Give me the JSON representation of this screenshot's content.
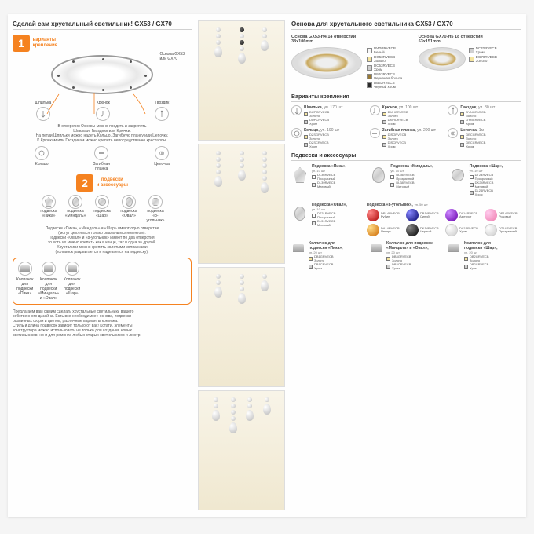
{
  "left": {
    "title": "Сделай сам хрустальный светильник! GX53 / GX70",
    "step1_num": "1",
    "step1_label": "варианты\nкрепления",
    "base_label": "Основа GX53\nили GX70",
    "callouts_top": [
      {
        "name": "Шпилька"
      },
      {
        "name": "Крючок"
      },
      {
        "name": "Гвоздик"
      }
    ],
    "desc1": "В отверстия Основы можно продеть и закрепить\nШпильки, Гвоздики или Крючки.\nНа петли Шпильки можно надеть Кольцо, Загибную планку или Цепочку.\nК Крючкам или Гвоздикам можно крепить непосредственно кристаллы.",
    "callouts_mid": [
      {
        "name": "Кольцо"
      },
      {
        "name": "Загибная\nпланка"
      },
      {
        "name": "Цепочка"
      }
    ],
    "step2_num": "2",
    "step2_label": "подвески\nи аксессуары",
    "pendants": [
      {
        "name": "подвеска\n«Пика»"
      },
      {
        "name": "подвеска\n«Миндаль»"
      },
      {
        "name": "подвеска\n«Шар»"
      },
      {
        "name": "подвеска\n«Овал»"
      },
      {
        "name": "подвеска\n«8-угольник»"
      }
    ],
    "desc2": "Подвески «Пика», «Миндаль» и «Шар» имеют одно отверстие\n(могут цепляться только овальным элементом).\nПодвески «Овал» и «8-угольник» имеют по два отверстия,\nто есть их можно крепить как в конце, так и одна за другой.\nХрусталики можно крепить золотыми колпачками\n(колпачок раздвигается и надевается на подвеску).",
    "caps": [
      {
        "name": "Колпачок\nдля\nподвески\n«Пика»"
      },
      {
        "name": "Колпачок\nдля\nподвески\n«Миндаль»\nи «Овал»"
      },
      {
        "name": "Колпачок\nдля\nподвески\n«Шар»"
      }
    ],
    "footer": "Предлагаем вам самим сделать хрустальные светильники вашего собственного дизайна. Есть все необходимое : основа, подвески различных форм и цветов, различные варианты крепежа.\nСтиль и длина подвесок зависит только от вас! Кстати, элементы конструктора можно использовать не только для создания новых светильников, но и для ремонта любых старых светильников и люстр.",
    "badges": [
      {
        "label": "Основа\nGX53 H4"
      },
      {
        "label": "Основа\nGX70-H5"
      }
    ]
  },
  "right": {
    "title": "Основа для хрустального светильника GX53 / GX70",
    "base1": {
      "title": "Основа GX53-H4 14 отверстий\n38x106mm",
      "codes": [
        {
          "c": "#f8f8f8",
          "t": "DW53RVECB\nБелый"
        },
        {
          "c": "#f5e5a0",
          "t": "DG53RVECB\nЗолото"
        },
        {
          "c": "#d0d0d0",
          "t": "DC53RVECB\nХром"
        },
        {
          "c": "#9a7a35",
          "t": "DN53RVECB\nЧерненая бронза"
        },
        {
          "c": "#2a2a2a",
          "t": "DB53RVECB\nЧерный хром"
        }
      ]
    },
    "base2": {
      "title": "Основа GX70-H5 18 отверстий\n53x151mm",
      "codes": [
        {
          "c": "#d0d0d0",
          "t": "DC70RVECB\nХром"
        },
        {
          "c": "#f5e5a0",
          "t": "DG70RVECB\nЗолото"
        }
      ]
    },
    "attach_title": "Варианты крепления",
    "attach": [
      {
        "name": "Шпилька,",
        "sub": "уп. 170 шт",
        "codes": [
          {
            "c": "#f5e5a0",
            "t": "DUPGRVECB\nЗолото"
          },
          {
            "c": "#d0d0d0",
            "t": "DUPCRVECB\nХром"
          }
        ]
      },
      {
        "name": "Крючок,",
        "sub": "уп. 100 шт",
        "codes": [
          {
            "c": "#f5e5a0",
            "t": "DMHGRVECB\nЗолото"
          },
          {
            "c": "#d0d0d0",
            "t": "DMHCRVECB\nХром"
          }
        ]
      },
      {
        "name": "Гвоздик,",
        "sub": "уп. 80 шт",
        "codes": [
          {
            "c": "#f5e5a0",
            "t": "DYNGRVECB\nЗолото"
          },
          {
            "c": "#d0d0d0",
            "t": "DYNCRVECB\nХром"
          }
        ]
      },
      {
        "name": "Кольцо,",
        "sub": "уп. 190 шт",
        "codes": [
          {
            "c": "#f5e5a0",
            "t": "DZSGRVECB\nЗолото"
          },
          {
            "c": "#d0d0d0",
            "t": "DZSCRVECB\nХром"
          }
        ]
      },
      {
        "name": "Загибная планка,",
        "sub": "уп. 200 шт",
        "codes": [
          {
            "c": "#f5e5a0",
            "t": "DISGRVECB\nЗолото"
          },
          {
            "c": "#d0d0d0",
            "t": "DISCRVECB\nХром"
          }
        ]
      },
      {
        "name": "Цепочка,",
        "sub": "1м",
        "codes": [
          {
            "c": "#f5e5a0",
            "t": "DECGRVECB\nЗолото"
          },
          {
            "c": "#d0d0d0",
            "t": "DECCRVECB\nХром"
          }
        ]
      }
    ],
    "pendant_title": "Подвески и аксессуары",
    "pendants_top": [
      {
        "name": "Подвеска «Пика»,",
        "sub": "уп. 10 шт",
        "shape": "pika",
        "codes": [
          {
            "c": "#fff",
            "t": "DL36RVECB\nПрозрачный"
          },
          {
            "c": "#e8e8e8",
            "t": "DL39RVECB\nМатовый"
          }
        ]
      },
      {
        "name": "Подвеска «Миндаль»,",
        "sub": "уп. 10 шт",
        "shape": "mindal",
        "codes": [
          {
            "c": "#fff",
            "t": "DL36RVECB\nПрозрачный"
          },
          {
            "c": "#e8e8e8",
            "t": "DL38RVECB\nМатовый"
          }
        ]
      },
      {
        "name": "Подвеска «Шар»,",
        "sub": "уп. 10 шт",
        "shape": "shar",
        "codes": [
          {
            "c": "#fff",
            "t": "DT24RVECB\nПрозрачный"
          },
          {
            "c": "#e8e8e8",
            "t": "DK24RVECB\nМатовый"
          },
          {
            "c": "#d0d0d0",
            "t": "DL24RVECB\nХром"
          }
        ]
      }
    ],
    "oval": {
      "name": "Подвеска «Овал»,",
      "sub": "уп. 10 шт",
      "codes": [
        {
          "c": "#fff",
          "t": "DT31RVECB\nПрозрачный"
        },
        {
          "c": "#e8e8e8",
          "t": "DL31RVECB\nМатовый"
        }
      ]
    },
    "oct": {
      "name": "Подвеска «8-угольник»,",
      "sub": "уп. 50 шт",
      "gems": [
        {
          "cls": "gem-red",
          "t": "DR14RVECB\nРубин"
        },
        {
          "cls": "gem-blue",
          "t": "DB14RVECB\nСиний"
        },
        {
          "cls": "gem-purple",
          "t": "DL14RVECB\nАметист"
        },
        {
          "cls": "gem-pink",
          "t": "DP14RVECB\nРозовый"
        },
        {
          "cls": "gem-amber",
          "t": "DA14RVECB\nЯнтарь"
        },
        {
          "cls": "gem-black",
          "t": "DK14RVECB\nЧерный"
        },
        {
          "cls": "gem-clear",
          "t": "DC14RVECB\nХром"
        },
        {
          "cls": "gem-clear",
          "t": "DT14RVECB\nПрозрачный"
        }
      ]
    },
    "caps": [
      {
        "name": "Колпачок для\nподвески «Пика»,",
        "sub": "уп. 20 шт",
        "codes": [
          {
            "c": "#f5e5a0",
            "t": "DB1GRVECB\nЗолото"
          },
          {
            "c": "#d0d0d0",
            "t": "DB1CRVECB\nХром"
          }
        ]
      },
      {
        "name": "Колпачок для подвесок\n«Миндаль» и «Овал»,",
        "sub": "уп. 20 шт",
        "codes": [
          {
            "c": "#f5e5a0",
            "t": "DB3GRVECB\nЗолото"
          },
          {
            "c": "#d0d0d0",
            "t": "DB3CRVECB\nХром"
          }
        ]
      },
      {
        "name": "Колпачок для\nподвески «Шар»,",
        "sub": "уп. 20 шт",
        "codes": [
          {
            "c": "#f5e5a0",
            "t": "DB2GRVECB\nЗолото"
          },
          {
            "c": "#d0d0d0",
            "t": "DB2CRVECB\nХром"
          }
        ]
      }
    ]
  }
}
